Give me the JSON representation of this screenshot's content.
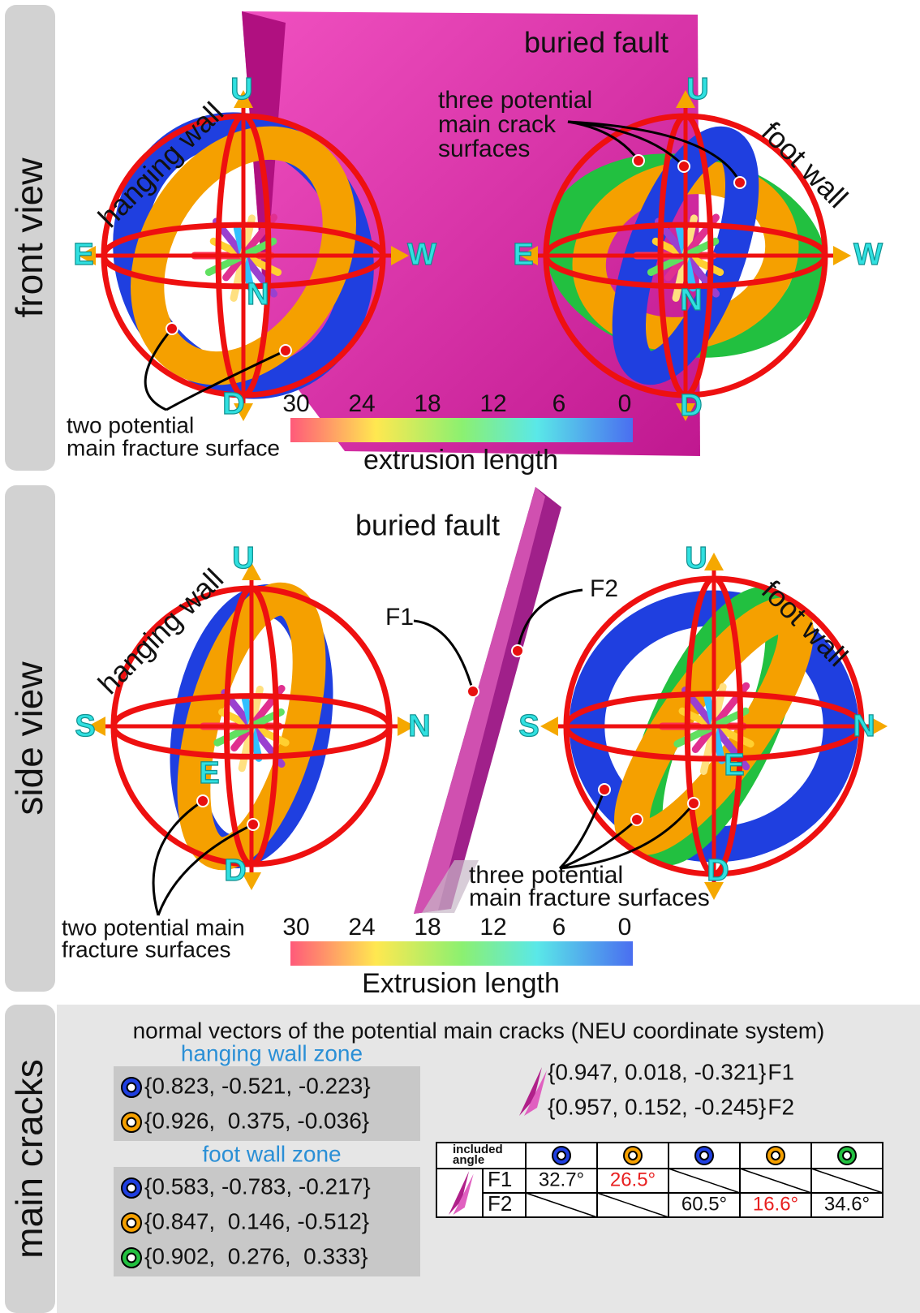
{
  "front_view": {
    "label": "front view",
    "fault": "buried fault",
    "hanging_wall": "hanging wall",
    "foot_wall": "foot wall",
    "left_axes": {
      "up": "U",
      "east": "E",
      "west": "W",
      "north": "N",
      "down": "D"
    },
    "right_axes": {
      "up": "U",
      "east": "E",
      "west": "W",
      "north": "N",
      "down": "D"
    },
    "right_note": [
      "three potential",
      "main crack",
      "surfaces"
    ],
    "left_note": [
      "two potential",
      "main fracture surface"
    ],
    "colorbar": {
      "ticks": [
        30,
        24,
        18,
        12,
        6,
        0
      ],
      "label": "extrusion length"
    }
  },
  "side_view": {
    "label": "side view",
    "fault": "buried fault",
    "fault_faces": [
      "F1",
      "F2"
    ],
    "hanging_wall": "hanging wall",
    "foot_wall": "foot wall",
    "left_axes": {
      "up": "U",
      "south": "S",
      "north": "N",
      "east": "E",
      "down": "D"
    },
    "right_axes": {
      "up": "U",
      "south": "S",
      "north": "N",
      "east": "E",
      "down": "D"
    },
    "left_note": [
      "two potential main",
      "fracture surfaces"
    ],
    "right_note": [
      "three potential",
      "main fracture surfaces"
    ],
    "colorbar": {
      "ticks": [
        30,
        24,
        18,
        12,
        6,
        0
      ],
      "label": "Extrusion length"
    }
  },
  "main_cracks": {
    "label": "main cracks",
    "title": "normal vectors of the potential main cracks (NEU coordinate system)",
    "zones": [
      {
        "title": "hanging wall zone",
        "vectors": [
          {
            "color": "#1f3fe0",
            "text": "{0.823, -0.521, -0.223}"
          },
          {
            "color": "#f5a000",
            "text": "{0.926,  0.375, -0.036}"
          }
        ]
      },
      {
        "title": "foot wall zone",
        "vectors": [
          {
            "color": "#1f3fe0",
            "text": "{0.583, -0.783, -0.217}"
          },
          {
            "color": "#f5a000",
            "text": "{0.847,  0.146, -0.512}"
          },
          {
            "color": "#22c040",
            "text": "{0.902,  0.276,  0.333}"
          }
        ]
      }
    ],
    "faults": [
      {
        "vector": "{0.947, 0.018, -0.321}",
        "name": "F1"
      },
      {
        "vector": "{0.957, 0.152, -0.245}",
        "name": "F2"
      }
    ],
    "table": {
      "corner": [
        "included",
        "angle"
      ],
      "columns": [
        "#1f3fe0",
        "#f5a000",
        "#1f3fe0",
        "#f5a000",
        "#22c040"
      ],
      "rows": [
        {
          "name": "F1",
          "cells": [
            {
              "text": "32.7°"
            },
            {
              "text": "26.5°",
              "color": "#e82020"
            },
            null,
            null,
            null
          ]
        },
        {
          "name": "F2",
          "cells": [
            null,
            null,
            {
              "text": "60.5°"
            },
            {
              "text": "16.6°",
              "color": "#e82020"
            },
            {
              "text": "34.6°"
            }
          ]
        }
      ]
    }
  }
}
